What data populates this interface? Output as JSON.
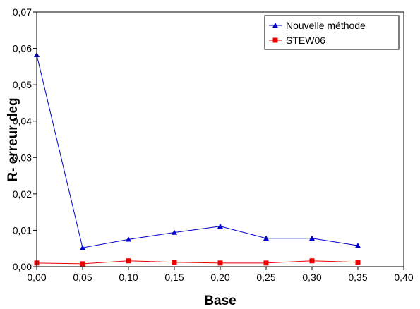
{
  "chart_data": {
    "type": "line",
    "xlabel": "Base",
    "ylabel": "R- erreur deg",
    "xlim": [
      0,
      0.4
    ],
    "ylim": [
      0,
      0.07
    ],
    "x_ticks": [
      0,
      0.05,
      0.1,
      0.15,
      0.2,
      0.25,
      0.3,
      0.35,
      0.4
    ],
    "x_tick_labels": [
      "0,00",
      "0,05",
      "0,10",
      "0,15",
      "0,20",
      "0,25",
      "0,30",
      "0,35",
      "0,40"
    ],
    "y_ticks": [
      0,
      0.01,
      0.02,
      0.03,
      0.04,
      0.05,
      0.06,
      0.07
    ],
    "y_tick_labels": [
      "0,00",
      "0,01",
      "0,02",
      "0,03",
      "0,04",
      "0,05",
      "0,06",
      "0,07"
    ],
    "grid": false,
    "legend_position": "top-right",
    "x": [
      0.0,
      0.05,
      0.1,
      0.15,
      0.2,
      0.25,
      0.3,
      0.35
    ],
    "series": [
      {
        "name": "Nouvelle méthode",
        "color": "#0000cc",
        "marker": "triangle",
        "values": [
          0.0582,
          0.0052,
          0.0075,
          0.0094,
          0.0111,
          0.0078,
          0.0078,
          0.0058
        ]
      },
      {
        "name": "STEW06",
        "color": "#ee0000",
        "marker": "square",
        "values": [
          0.001,
          0.0008,
          0.0016,
          0.0012,
          0.001,
          0.001,
          0.0016,
          0.0012
        ]
      }
    ]
  }
}
